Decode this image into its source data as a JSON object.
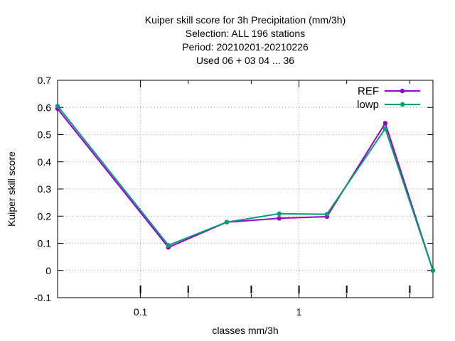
{
  "chart_data": {
    "type": "line",
    "title_lines": [
      "Kuiper skill score  for 3h Precipitation (mm/3h)",
      "Selection: ALL    196 stations",
      "Period: 20210201-20210226",
      "Used  06  + 03 04 ... 36"
    ],
    "xlabel": "classes mm/3h",
    "ylabel": "Kuiper skill score",
    "x_scale": "log",
    "xlim": [
      0.03,
      7
    ],
    "ylim": [
      -0.1,
      0.7
    ],
    "x_ticks": [
      {
        "value": 0.1,
        "label": "0.1"
      },
      {
        "value": 1,
        "label": "1"
      }
    ],
    "x_minor_ticks": [
      0.2,
      0.5,
      2,
      5
    ],
    "y_ticks": [
      {
        "value": -0.1,
        "label": "-0.1"
      },
      {
        "value": 0,
        "label": "0"
      },
      {
        "value": 0.1,
        "label": "0.1"
      },
      {
        "value": 0.2,
        "label": "0.2"
      },
      {
        "value": 0.3,
        "label": "0.3"
      },
      {
        "value": 0.4,
        "label": "0.4"
      },
      {
        "value": 0.5,
        "label": "0.5"
      },
      {
        "value": 0.6,
        "label": "0.6"
      },
      {
        "value": 0.7,
        "label": "0.7"
      }
    ],
    "grid": true,
    "legend_position": "top-right",
    "series": [
      {
        "name": "REF",
        "color": "#9400d3",
        "x": [
          0.03,
          0.15,
          0.35,
          0.75,
          1.5,
          3.5,
          7
        ],
        "y": [
          0.595,
          0.085,
          0.178,
          0.192,
          0.198,
          0.542,
          0.0
        ]
      },
      {
        "name": "lowp",
        "color": "#009e73",
        "x": [
          0.03,
          0.15,
          0.35,
          0.75,
          1.5,
          3.5,
          7
        ],
        "y": [
          0.605,
          0.093,
          0.178,
          0.209,
          0.207,
          0.522,
          0.0
        ]
      }
    ]
  }
}
